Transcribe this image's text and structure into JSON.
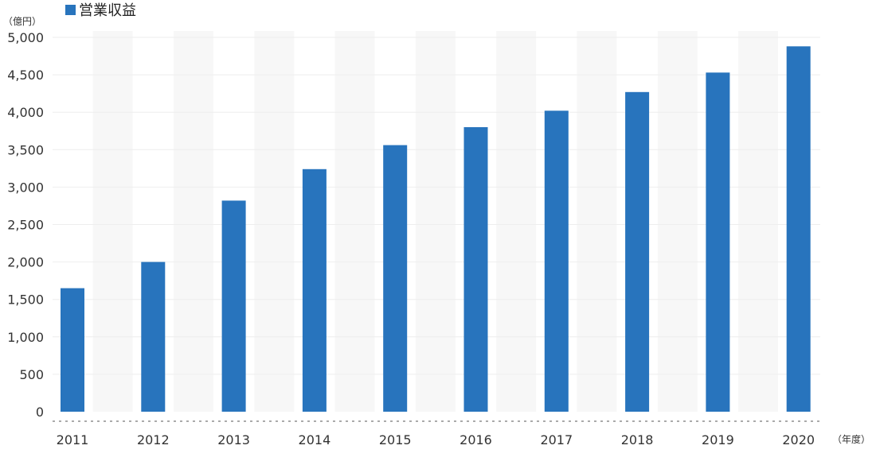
{
  "legend": {
    "label": "営業収益"
  },
  "units": {
    "y": "（億円）",
    "x": "（年度）"
  },
  "colors": {
    "bar": "#2874bd",
    "band": "#f7f7f7",
    "grid": "#eeeeee",
    "baseline": "#aaaaaa"
  },
  "chart_data": {
    "type": "bar",
    "categories": [
      "2011",
      "2012",
      "2013",
      "2014",
      "2015",
      "2016",
      "2017",
      "2018",
      "2019",
      "2020"
    ],
    "series": [
      {
        "name": "営業収益",
        "values": [
          1650,
          2000,
          2820,
          3240,
          3560,
          3800,
          4020,
          4270,
          4530,
          4880
        ]
      }
    ],
    "ylim": [
      0,
      5000
    ],
    "yticks": [
      "0",
      "500",
      "1,000",
      "1,500",
      "2,000",
      "2,500",
      "3,000",
      "3,500",
      "4,000",
      "4,500",
      "5,000"
    ],
    "legend_position": "top-left",
    "grid": true
  }
}
